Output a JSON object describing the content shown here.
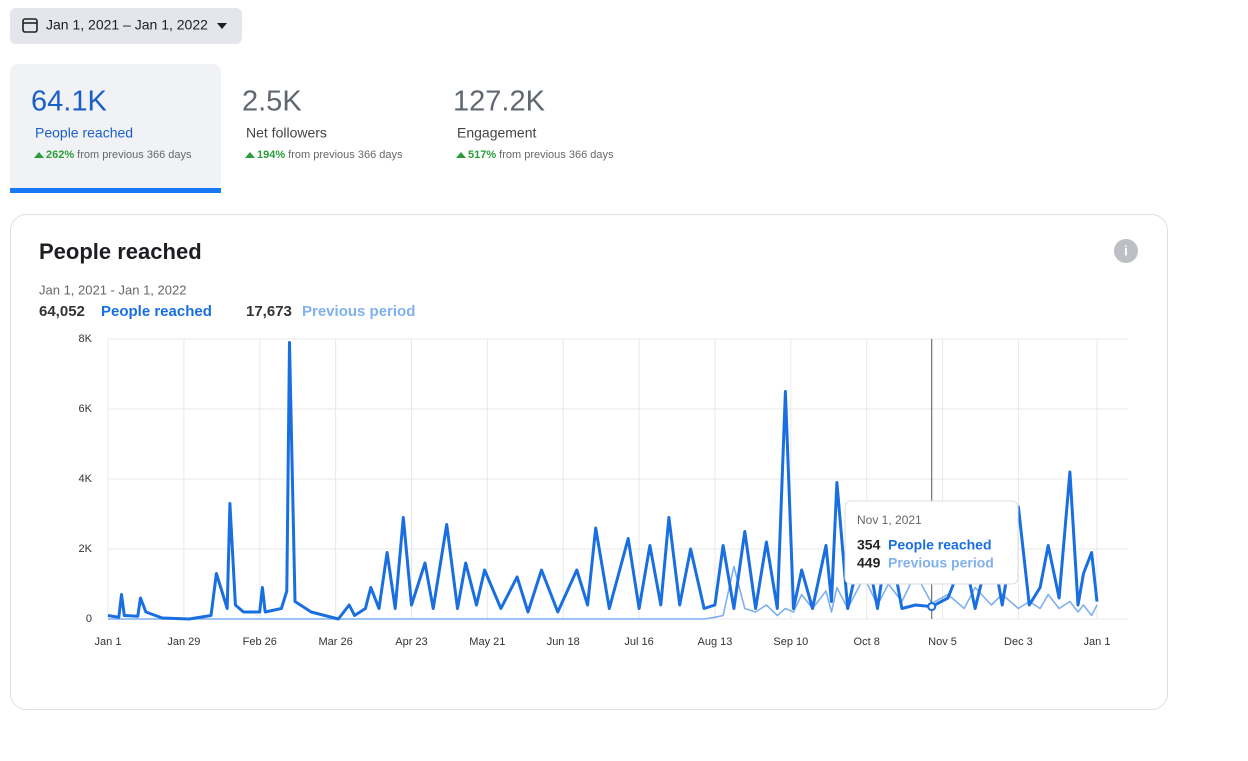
{
  "header": {
    "date_range": "Jan 1, 2021 – Jan 1, 2022"
  },
  "metrics": [
    {
      "value": "64.1K",
      "label": "People reached",
      "change": "262%",
      "suffix": "from previous 366 days"
    },
    {
      "value": "2.5K",
      "label": "Net followers",
      "change": "194%",
      "suffix": "from previous 366 days"
    },
    {
      "value": "127.2K",
      "label": "Engagement",
      "change": "517%",
      "suffix": "from previous 366 days"
    }
  ],
  "chart_data": {
    "type": "line",
    "title": "People reached",
    "subtitle": "Jan 1, 2021 - Jan 1, 2022",
    "xlim": [
      0,
      365
    ],
    "xticks": [
      {
        "value": 0,
        "label": "Jan 1"
      },
      {
        "value": 28,
        "label": "Jan 29"
      },
      {
        "value": 56,
        "label": "Feb 26"
      },
      {
        "value": 84,
        "label": "Mar 26"
      },
      {
        "value": 112,
        "label": "Apr 23"
      },
      {
        "value": 140,
        "label": "May 21"
      },
      {
        "value": 168,
        "label": "Jun 18"
      },
      {
        "value": 196,
        "label": "Jul 16"
      },
      {
        "value": 224,
        "label": "Aug 13"
      },
      {
        "value": 252,
        "label": "Sep 10"
      },
      {
        "value": 280,
        "label": "Oct 8"
      },
      {
        "value": 308,
        "label": "Nov 5"
      },
      {
        "value": 336,
        "label": "Dec 3"
      },
      {
        "value": 365,
        "label": "Jan 1"
      }
    ],
    "ylim": [
      0,
      8000
    ],
    "yticks": [
      0,
      {
        "value": 2000,
        "label": "2K"
      },
      {
        "value": 4000,
        "label": "4K"
      },
      {
        "value": 6000,
        "label": "6K"
      },
      {
        "value": 8000,
        "label": "8K"
      }
    ],
    "grid": true,
    "x": [
      0,
      4,
      5,
      6,
      11,
      12,
      14,
      20,
      30,
      38,
      40,
      44,
      45,
      47,
      50,
      56,
      57,
      58,
      64,
      66,
      67,
      69,
      75,
      85,
      89,
      91,
      95,
      97,
      100,
      103,
      106,
      109,
      112,
      117,
      120,
      125,
      129,
      132,
      136,
      139,
      145,
      151,
      155,
      160,
      166,
      173,
      177,
      180,
      185,
      192,
      196,
      200,
      204,
      207,
      211,
      215,
      220,
      224,
      227,
      231,
      235,
      239,
      243,
      247,
      250,
      253,
      256,
      260,
      265,
      267,
      269,
      273,
      279,
      284,
      288,
      293,
      298,
      304,
      310,
      316,
      320,
      326,
      330,
      336,
      340,
      344,
      347,
      351,
      355,
      358,
      360,
      363,
      365
    ],
    "series": [
      {
        "name": "Previous period",
        "total": "17,673",
        "color": "#7fb0ef",
        "values": [
          0,
          0,
          0,
          0,
          0,
          0,
          0,
          0,
          0,
          0,
          0,
          0,
          0,
          0,
          0,
          0,
          0,
          0,
          0,
          0,
          0,
          0,
          0,
          0,
          0,
          0,
          0,
          0,
          0,
          0,
          0,
          0,
          0,
          0,
          0,
          0,
          0,
          0,
          0,
          0,
          0,
          0,
          0,
          0,
          0,
          0,
          0,
          0,
          0,
          0,
          0,
          0,
          0,
          0,
          0,
          0,
          0,
          50,
          100,
          1500,
          300,
          200,
          400,
          100,
          300,
          200,
          700,
          300,
          800,
          200,
          900,
          300,
          1200,
          400,
          1000,
          500,
          1300,
          449,
          700,
          300,
          900,
          400,
          700,
          300,
          500,
          300,
          700,
          300,
          500,
          200,
          400,
          100,
          400
        ]
      },
      {
        "name": "People reached",
        "total": "64,052",
        "color": "#1a6fe0",
        "values": [
          100,
          50,
          700,
          100,
          80,
          600,
          200,
          30,
          0,
          100,
          1300,
          300,
          3300,
          400,
          200,
          200,
          900,
          200,
          300,
          800,
          7900,
          500,
          200,
          0,
          400,
          100,
          300,
          900,
          300,
          1900,
          300,
          2900,
          400,
          1600,
          300,
          2700,
          300,
          1600,
          400,
          1400,
          300,
          1200,
          200,
          1400,
          200,
          1400,
          400,
          2600,
          300,
          2300,
          300,
          2100,
          400,
          2900,
          400,
          2000,
          300,
          400,
          2100,
          300,
          2500,
          300,
          2200,
          300,
          6500,
          300,
          1400,
          300,
          2100,
          500,
          3900,
          300,
          2400,
          300,
          2400,
          300,
          400,
          354,
          600,
          1800,
          300,
          2200,
          400,
          3200,
          400,
          900,
          2100,
          600,
          4200,
          400,
          1300,
          1900,
          500
        ]
      }
    ],
    "tooltip": {
      "title": "Nov 1, 2021"
    }
  }
}
